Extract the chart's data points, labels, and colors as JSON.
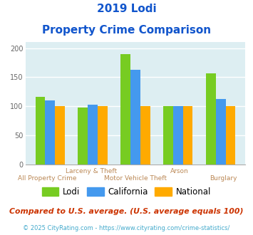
{
  "title_line1": "2019 Lodi",
  "title_line2": "Property Crime Comparison",
  "lodi": [
    116,
    98,
    190,
    100,
    157
  ],
  "california": [
    110,
    103,
    163,
    100,
    113
  ],
  "national": [
    100,
    100,
    100,
    100,
    100
  ],
  "colors": {
    "lodi": "#77cc22",
    "california": "#4499ee",
    "national": "#ffaa00"
  },
  "ylim": [
    0,
    210
  ],
  "yticks": [
    0,
    50,
    100,
    150,
    200
  ],
  "background_color": "#ddeef2",
  "title_color": "#1155cc",
  "xlabel_color": "#bb8855",
  "footnote1": "Compared to U.S. average. (U.S. average equals 100)",
  "footnote2": "© 2025 CityRating.com - https://www.cityrating.com/crime-statistics/",
  "footnote1_color": "#cc3300",
  "footnote2_color": "#44aacc",
  "legend_labels": [
    "Lodi",
    "California",
    "National"
  ],
  "bar_width": 0.23,
  "grid_color": "#ffffff",
  "top_labels": [
    "",
    "Larceny & Theft",
    "",
    "Arson",
    ""
  ],
  "bottom_labels": [
    "All Property Crime",
    "",
    "Motor Vehicle Theft",
    "",
    "Burglary"
  ]
}
